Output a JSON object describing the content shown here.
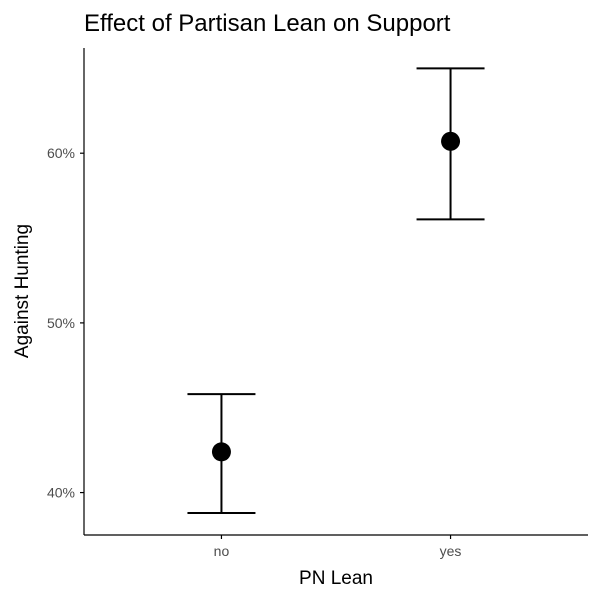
{
  "chart_data": {
    "type": "errorbar",
    "title": "Effect of Partisan Lean on Support",
    "xlabel": "PN Lean",
    "ylabel": "Against Hunting",
    "categories": [
      "no",
      "yes"
    ],
    "points": [
      {
        "x": "no",
        "y": 42.4,
        "lower": 38.8,
        "upper": 45.8
      },
      {
        "x": "yes",
        "y": 60.7,
        "lower": 56.1,
        "upper": 65.0
      }
    ],
    "y_ticks": [
      40,
      50,
      60
    ],
    "y_tick_labels": [
      "40%",
      "50%",
      "60%"
    ],
    "ylim": [
      37.5,
      66.2
    ],
    "grid": false,
    "colors": {
      "point": "#000000",
      "errorbar": "#000000",
      "axis": "#000000",
      "tick_label": "#4d4d4d",
      "text": "#000000"
    }
  }
}
